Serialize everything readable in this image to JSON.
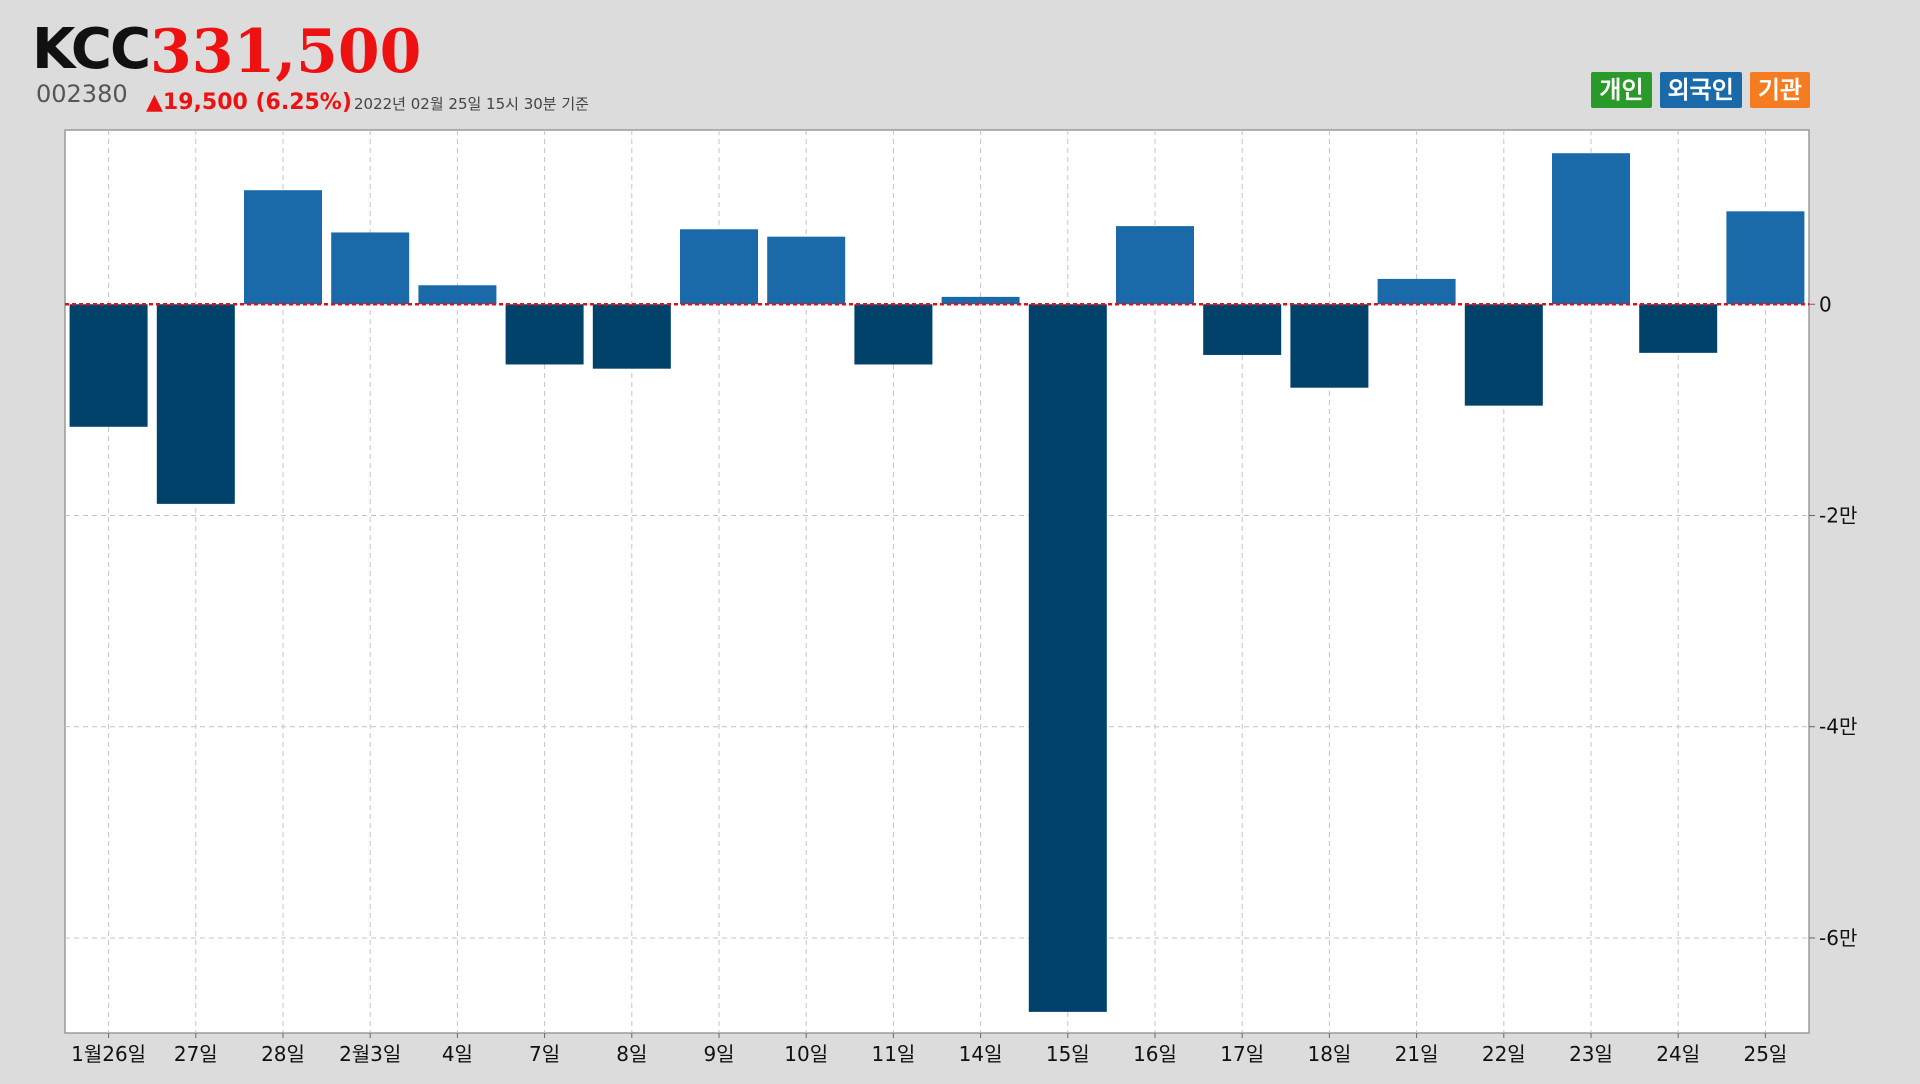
{
  "header": {
    "name": "KCC",
    "price": "331,500",
    "code": "002380",
    "change": "▲19,500 (6.25%)",
    "timestamp": "2022년 02월 25일 15시 30분 기준"
  },
  "legend": [
    {
      "label": "개인",
      "color": "#2a9a2a"
    },
    {
      "label": "외국인",
      "color": "#1a6aaa"
    },
    {
      "label": "기관",
      "color": "#f57c20"
    }
  ],
  "colors": {
    "positive": "#1a6aaa",
    "negative": "#00426a",
    "zero_line": "#e0111a",
    "grid": "#c4c4c4"
  },
  "chart_data": {
    "type": "bar",
    "categories": [
      "1월26일",
      "27일",
      "28일",
      "2월3일",
      "4일",
      "7일",
      "8일",
      "9일",
      "10일",
      "11일",
      "14일",
      "15일",
      "16일",
      "17일",
      "18일",
      "21일",
      "22일",
      "23일",
      "24일",
      "25일"
    ],
    "series": [
      {
        "values": [
          -11600,
          -18900,
          10800,
          6800,
          1800,
          -5700,
          -6100,
          7100,
          6400,
          -5700,
          700,
          -67000,
          7400,
          -4800,
          -7900,
          2400,
          -9600,
          14300,
          -4600,
          8800
        ]
      }
    ],
    "ylim": [
      -69000,
      16500
    ],
    "yticks": [
      {
        "value": 0,
        "label": "0"
      },
      {
        "value": -20000,
        "label": "-2만"
      },
      {
        "value": -40000,
        "label": "-4만"
      },
      {
        "value": -60000,
        "label": "-6만"
      }
    ],
    "grid": true
  }
}
